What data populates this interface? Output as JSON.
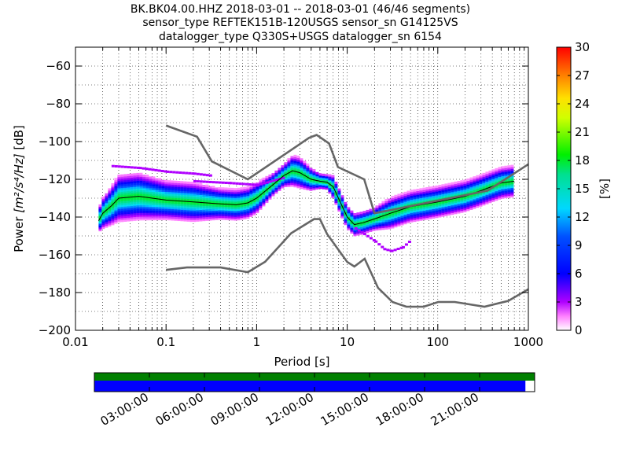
{
  "title_lines": [
    "BK.BK04.00.HHZ   2018-03-01 -- 2018-03-01  (46/46 segments)",
    "sensor_type REFTEK151B-120USGS sensor_sn G14125VS",
    "datalogger_type Q330S+USGS datalogger_sn 6154"
  ],
  "chart_data": {
    "type": "heatmap",
    "xlabel": "Period [s]",
    "ylabel_prefix": "Power ",
    "ylabel_units": "[m²/s⁴/Hz]",
    "ylabel_suffix": " [dB]",
    "x_scale": "log",
    "xlim": [
      0.01,
      1000
    ],
    "ylim": [
      -200,
      -50
    ],
    "x_ticks": [
      0.01,
      0.1,
      1,
      10,
      100,
      1000
    ],
    "x_tick_labels": [
      "0.01",
      "0.1",
      "1",
      "10",
      "100",
      "1000"
    ],
    "y_ticks": [
      -200,
      -180,
      -160,
      -140,
      -120,
      -100,
      -80,
      -60
    ],
    "y_tick_labels": [
      "−200",
      "−180",
      "−160",
      "−140",
      "−120",
      "−100",
      "−80",
      "−60"
    ],
    "grid": "dotted, vertical and horizontal",
    "colorbar": {
      "label": "[%]",
      "min": 0,
      "max": 30,
      "ticks": [
        0,
        3,
        6,
        9,
        12,
        15,
        18,
        21,
        24,
        27,
        30
      ],
      "tick_labels": [
        "0",
        "3",
        "6",
        "9",
        "12",
        "15",
        "18",
        "21",
        "24",
        "27",
        "30"
      ],
      "colormap": "pqlx (white → magenta → blue → cyan → green → yellow → red)"
    },
    "density_band": {
      "period": [
        0.018,
        0.02,
        0.025,
        0.03,
        0.05,
        0.1,
        0.2,
        0.4,
        0.6,
        0.8,
        1,
        1.5,
        2,
        2.5,
        3,
        4,
        5,
        6,
        7,
        8,
        10,
        12,
        15,
        20,
        30,
        50,
        100,
        200,
        300,
        500,
        700
      ],
      "mode_db": [
        -142,
        -138,
        -134,
        -130,
        -129,
        -131,
        -132,
        -133,
        -133.5,
        -132.5,
        -130,
        -123,
        -118,
        -115.5,
        -116.5,
        -120,
        -121,
        -121.5,
        -124,
        -130,
        -140,
        -144,
        -143,
        -141,
        -138,
        -134.5,
        -132,
        -129,
        -126,
        -122,
        -121
      ],
      "spread_db": [
        3,
        4,
        5,
        6,
        6,
        5,
        5,
        4,
        4,
        4,
        4,
        3,
        3,
        4,
        4,
        3,
        2,
        2,
        3,
        3,
        3,
        3,
        3,
        3,
        4,
        4,
        4,
        4,
        4,
        4,
        4
      ],
      "outliers": [
        {
          "period": [
            0.025,
            0.05,
            0.1,
            0.2,
            0.3
          ],
          "db": [
            -113,
            -114,
            -116,
            -117,
            -118
          ]
        },
        {
          "period": [
            0.2,
            0.5,
            1,
            2
          ],
          "db": [
            -121,
            -122,
            -123,
            -119
          ]
        },
        {
          "period": [
            12,
            15,
            20,
            25,
            30,
            40,
            50
          ],
          "db": [
            -146,
            -149,
            -153,
            -157,
            -158,
            -156,
            -152
          ]
        }
      ]
    },
    "mode_line": {
      "period": [
        0.018,
        0.02,
        0.025,
        0.03,
        0.05,
        0.1,
        0.2,
        0.4,
        0.6,
        0.8,
        1,
        1.5,
        2,
        2.5,
        3,
        4,
        5,
        6,
        7,
        8,
        10,
        12,
        15,
        20,
        30,
        50,
        100,
        200,
        300,
        500,
        700
      ],
      "db": [
        -142,
        -138,
        -134,
        -130,
        -129,
        -131,
        -132,
        -133,
        -133.5,
        -132.5,
        -130,
        -123,
        -118,
        -115.5,
        -116.5,
        -120,
        -121,
        -121.5,
        -124,
        -130,
        -140,
        -144,
        -143,
        -141,
        -138,
        -134.5,
        -132,
        -129,
        -126,
        -122,
        -121
      ]
    },
    "nhnm": {
      "period": [
        0.1,
        0.22,
        0.32,
        0.8,
        3.8,
        4.6,
        6.3,
        7.9,
        15.4,
        20,
        354.8,
        1000
      ],
      "db": [
        -91.5,
        -97.4,
        -110.5,
        -120,
        -98,
        -96.5,
        -101,
        -113.5,
        -120,
        -138,
        -126,
        -112
      ]
    },
    "nlnm": {
      "period": [
        0.1,
        0.17,
        0.4,
        0.8,
        1.24,
        2.4,
        4.3,
        5,
        6,
        10,
        12,
        15.6,
        21.9,
        31.6,
        45,
        70,
        101,
        154,
        328,
        600,
        1000
      ],
      "db": [
        -168,
        -166.7,
        -166.7,
        -169.2,
        -163.7,
        -148.6,
        -141.1,
        -141.1,
        -149,
        -163.8,
        -166.2,
        -162.1,
        -177.5,
        -185,
        -187.5,
        -187.5,
        -185,
        -185,
        -187.5,
        -184.4,
        -178.2
      ]
    }
  },
  "timeline": {
    "tick_labels": [
      "03:00:00",
      "06:00:00",
      "09:00:00",
      "12:00:00",
      "15:00:00",
      "18:00:00",
      "21:00:00"
    ],
    "tick_hours": [
      3,
      6,
      9,
      12,
      15,
      18,
      21
    ],
    "span_hours": 24,
    "data_coverage_fraction": 1.0,
    "psd_coverage_fraction": 0.979,
    "data_color": "#008000",
    "psd_color": "#0000ff"
  }
}
